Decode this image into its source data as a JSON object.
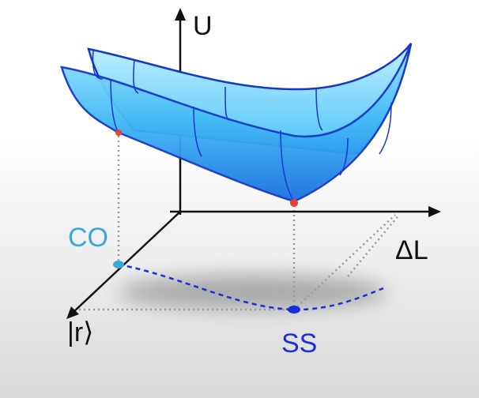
{
  "labels": {
    "u_axis": "U",
    "delta_l_axis": "ΔL",
    "r_axis": "|r⟩",
    "co_point": "CO",
    "ss_point": "SS"
  }
}
